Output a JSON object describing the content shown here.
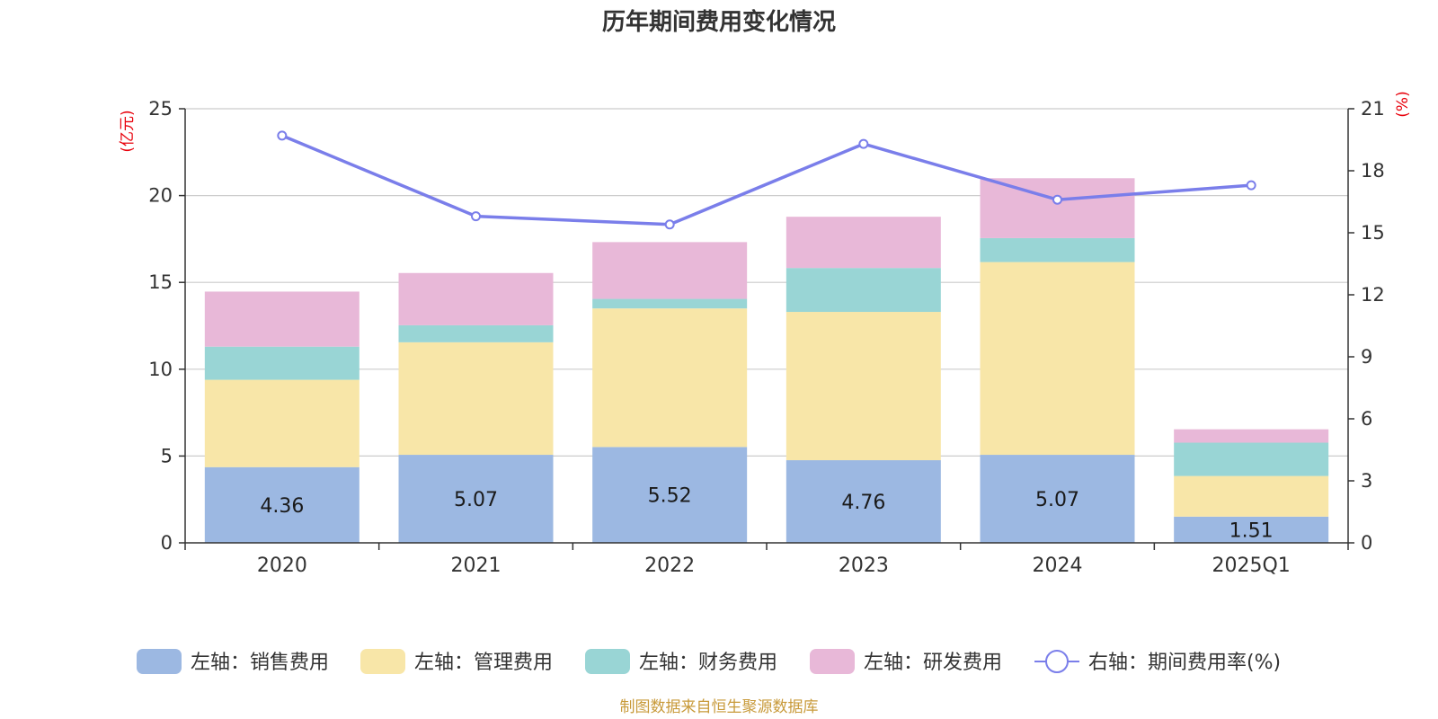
{
  "chart_data": {
    "type": "bar",
    "stacked": true,
    "title": "历年期间费用变化情况",
    "categories": [
      "2020",
      "2021",
      "2022",
      "2023",
      "2024",
      "2025Q1"
    ],
    "left_axis": {
      "unit": "(亿元)",
      "min": 0,
      "max": 25,
      "ticks": [
        "0",
        "5",
        "10",
        "15",
        "20",
        "25"
      ]
    },
    "right_axis": {
      "unit": "(%)",
      "min": 0,
      "max": 21,
      "ticks": [
        "0",
        "3",
        "6",
        "9",
        "12",
        "15",
        "18",
        "21"
      ]
    },
    "series": [
      {
        "name": "左轴：销售费用",
        "axis": "left",
        "kind": "bar",
        "color": "#9cb8e2",
        "values": [
          4.36,
          5.07,
          5.52,
          4.76,
          5.07,
          1.51
        ],
        "labels": [
          "4.36",
          "5.07",
          "5.52",
          "4.76",
          "5.07",
          "1.51"
        ]
      },
      {
        "name": "左轴：管理费用",
        "axis": "left",
        "kind": "bar",
        "color": "#f8e6a8",
        "values": [
          5.03,
          6.48,
          7.98,
          8.54,
          11.1,
          2.34
        ]
      },
      {
        "name": "左轴：财务费用",
        "axis": "left",
        "kind": "bar",
        "color": "#99d5d5",
        "values": [
          1.91,
          0.98,
          0.55,
          2.53,
          1.38,
          1.92
        ]
      },
      {
        "name": "左轴：研发费用",
        "axis": "left",
        "kind": "bar",
        "color": "#e8b8d8",
        "values": [
          3.17,
          3.01,
          3.27,
          2.95,
          3.45,
          0.77
        ]
      },
      {
        "name": "右轴：期间费用率(%)",
        "axis": "right",
        "kind": "line",
        "color": "#7a7eea",
        "values": [
          19.7,
          15.8,
          15.4,
          19.3,
          16.6,
          17.3
        ]
      }
    ],
    "grid": true,
    "legend_position": "bottom"
  },
  "colors": {
    "axis_unit": "#e8000b",
    "source_text": "#c89a3a",
    "grid": "#cccccc",
    "axis": "#333333"
  },
  "source": "制图数据来自恒生聚源数据库"
}
